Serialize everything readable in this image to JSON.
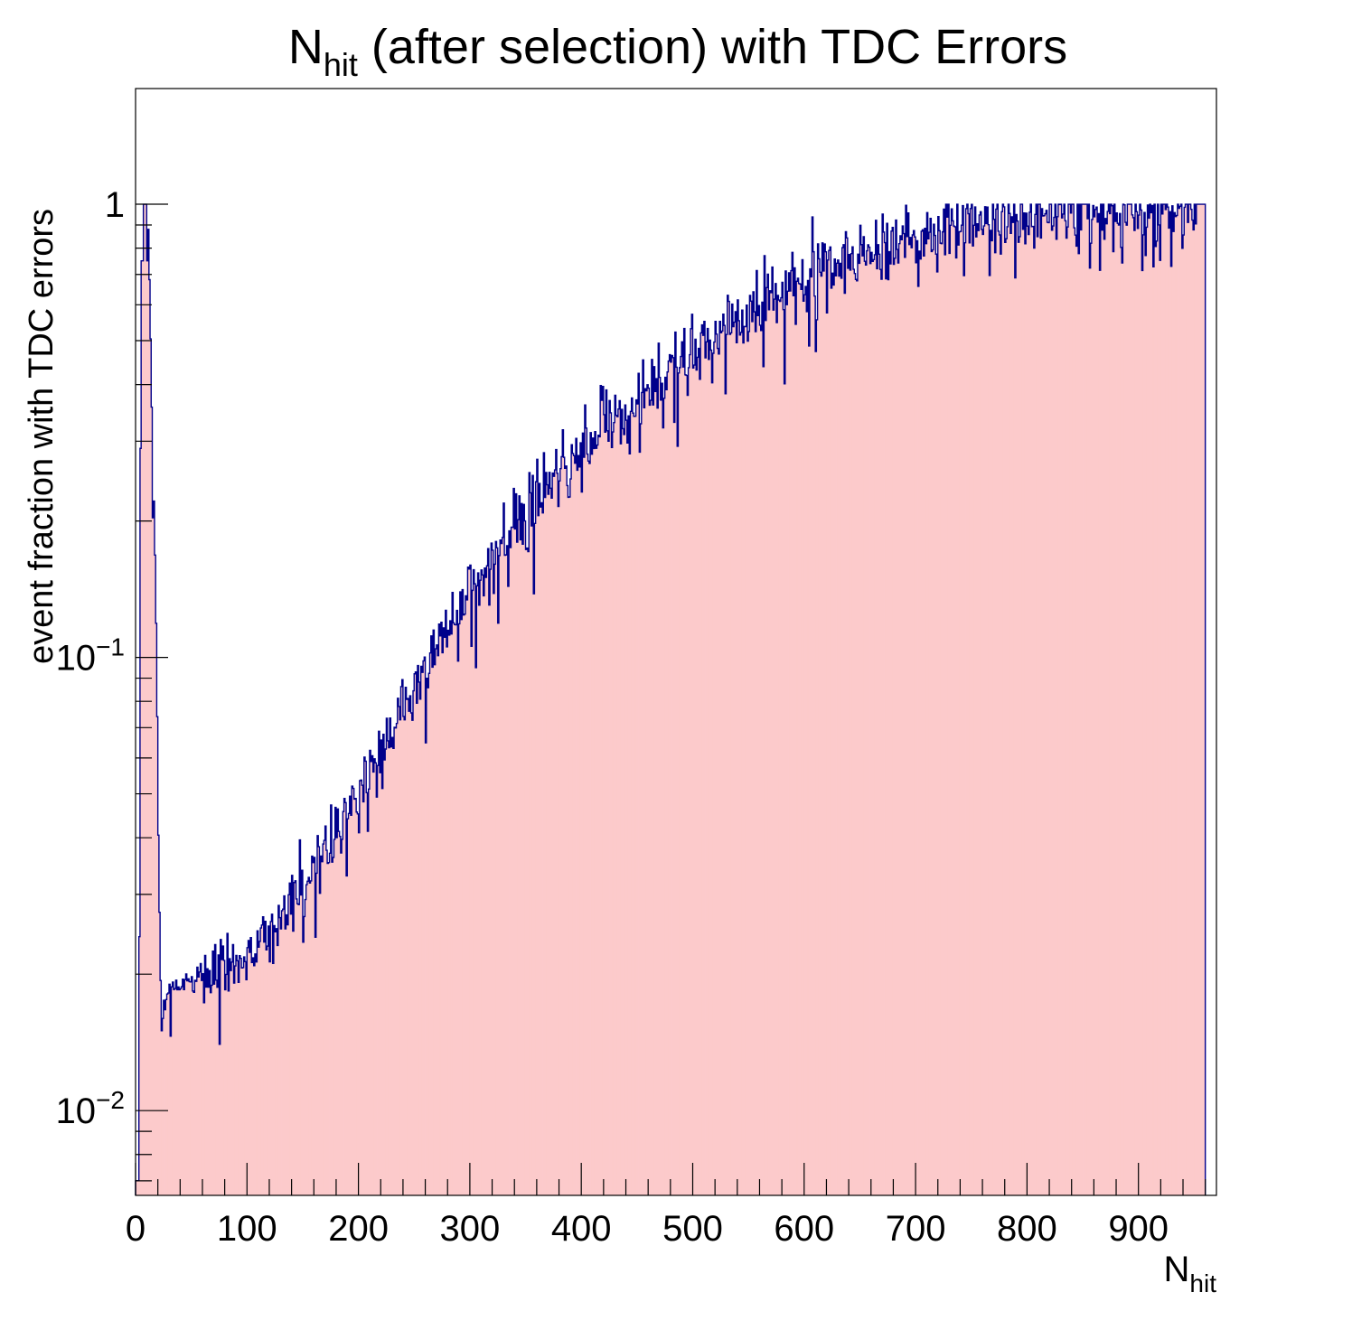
{
  "chart_data": {
    "type": "histogram",
    "title": {
      "main": "N",
      "sub": "hit",
      "rest": " (after selection) with TDC Errors"
    },
    "xlabel": {
      "main": "N",
      "sub": "hit"
    },
    "ylabel": "event fraction with TDC errors",
    "x_range": [
      0,
      970
    ],
    "y_range": [
      0.0065,
      1.8
    ],
    "y_scale": "log",
    "x_ticks": [
      "0",
      "100",
      "200",
      "300",
      "400",
      "500",
      "600",
      "700",
      "800",
      "900"
    ],
    "y_ticks": [
      {
        "value": 1,
        "label": "1"
      },
      {
        "value": 0.1,
        "label": "10",
        "exp": "−1"
      },
      {
        "value": 0.01,
        "label": "10",
        "exp": "−2"
      }
    ],
    "fill_color": "#fccacb",
    "line_color": "#00008b",
    "bin_width": 1,
    "shape_anchors": {
      "x": [
        0,
        3,
        5,
        7,
        9,
        11,
        13,
        15,
        17,
        19,
        21,
        22,
        23,
        24,
        25,
        26,
        28,
        30,
        32,
        35,
        40,
        50,
        60,
        70,
        80,
        90,
        100,
        110,
        120,
        130,
        140,
        150,
        160,
        170,
        180,
        190,
        200,
        220,
        240,
        260,
        280,
        300,
        320,
        340,
        360,
        380,
        400,
        420,
        440,
        460,
        480,
        500,
        520,
        540,
        560,
        580,
        600,
        620,
        640,
        660,
        680,
        700,
        720,
        740,
        760,
        780,
        800,
        820,
        840,
        860,
        880,
        900,
        920,
        940,
        950,
        960
      ],
      "y": [
        0.007,
        0.007,
        1.0,
        1.0,
        1.0,
        1.0,
        0.6,
        0.3,
        0.2,
        0.1,
        0.03,
        0.025,
        0.015,
        0.015,
        0.017,
        0.017,
        0.018,
        0.0185,
        0.019,
        0.019,
        0.019,
        0.0195,
        0.02,
        0.0205,
        0.021,
        0.0215,
        0.022,
        0.023,
        0.025,
        0.027,
        0.029,
        0.031,
        0.034,
        0.037,
        0.04,
        0.045,
        0.05,
        0.062,
        0.077,
        0.095,
        0.115,
        0.14,
        0.165,
        0.19,
        0.22,
        0.25,
        0.28,
        0.32,
        0.36,
        0.39,
        0.43,
        0.47,
        0.51,
        0.55,
        0.59,
        0.63,
        0.67,
        0.71,
        0.74,
        0.78,
        0.81,
        0.84,
        0.87,
        0.9,
        0.92,
        0.94,
        0.95,
        0.96,
        0.97,
        0.97,
        0.97,
        0.97,
        0.97,
        0.97,
        0.97,
        0.97
      ]
    },
    "noise_seed": 12345,
    "x_data_max": 960
  }
}
